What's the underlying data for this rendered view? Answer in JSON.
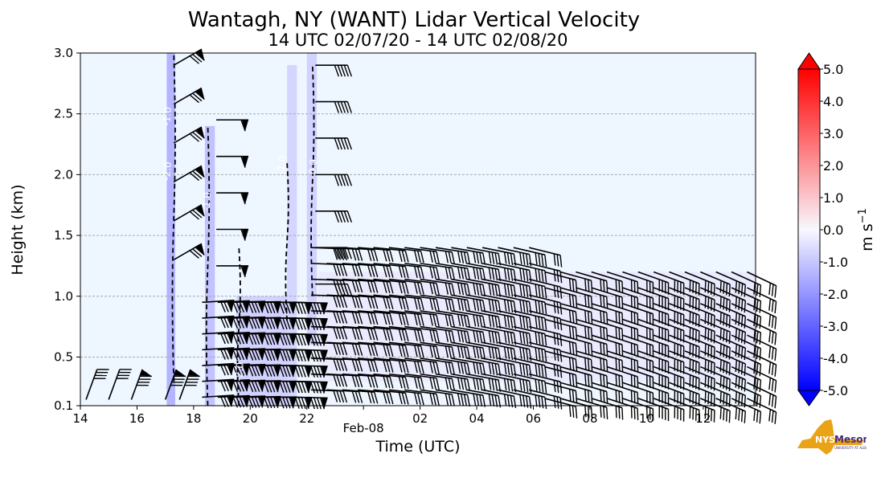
{
  "chart_data": {
    "type": "heatmap",
    "title": "Wantagh, NY (WANT) Lidar Vertical Velocity",
    "subtitle": "14 UTC 02/07/20 - 14 UTC 02/08/20",
    "xlabel": "Time (UTC)",
    "ylabel": "Height (km)",
    "xlim": [
      14,
      37.85
    ],
    "ylim": [
      0.1,
      3.0
    ],
    "x_ticks": [
      {
        "value": 14,
        "label": "14"
      },
      {
        "value": 16,
        "label": "16"
      },
      {
        "value": 18,
        "label": "18"
      },
      {
        "value": 20,
        "label": "20"
      },
      {
        "value": 22,
        "label": "22"
      },
      {
        "value": 24,
        "label": "Feb-08"
      },
      {
        "value": 26,
        "label": "02"
      },
      {
        "value": 28,
        "label": "04"
      },
      {
        "value": 30,
        "label": "06"
      },
      {
        "value": 32,
        "label": "08"
      },
      {
        "value": 34,
        "label": "10"
      },
      {
        "value": 36,
        "label": "12"
      }
    ],
    "y_ticks": [
      {
        "value": 0.1,
        "label": "0.1"
      },
      {
        "value": 0.5,
        "label": "0.5"
      },
      {
        "value": 1.0,
        "label": "1.0"
      },
      {
        "value": 1.5,
        "label": "1.5"
      },
      {
        "value": 2.0,
        "label": "2.0"
      },
      {
        "value": 2.5,
        "label": "2.5"
      },
      {
        "value": 3.0,
        "label": "3.0"
      }
    ],
    "grid": "horizontal dashed",
    "colorbar": {
      "label": "m s",
      "label_exp": "−1",
      "range": [
        -5.0,
        5.0
      ],
      "ticks": [
        {
          "value": 5,
          "label": "5.0"
        },
        {
          "value": 4,
          "label": "4.0"
        },
        {
          "value": 3,
          "label": "3.0"
        },
        {
          "value": 2,
          "label": "2.0"
        },
        {
          "value": 1,
          "label": "1.0"
        },
        {
          "value": 0,
          "label": "0.0"
        },
        {
          "value": -1,
          "label": "-1.0"
        },
        {
          "value": -2,
          "label": "-2.0"
        },
        {
          "value": -3,
          "label": "-3.0"
        },
        {
          "value": -4,
          "label": "-4.0"
        },
        {
          "value": -5,
          "label": "-5.0"
        }
      ],
      "colors": {
        "neg": "#0000ff",
        "zero": "#f8f8ff",
        "pos": "#ff0000"
      }
    },
    "background_color": "#eef6ff",
    "downdraft_columns": [
      {
        "x0": 17.05,
        "x1": 17.35,
        "y0": 0.1,
        "y1": 3.0,
        "w": -1.6
      },
      {
        "x0": 18.4,
        "x1": 18.75,
        "y0": 0.1,
        "y1": 2.4,
        "w": -1.3
      },
      {
        "x0": 21.3,
        "x1": 21.65,
        "y0": 0.1,
        "y1": 2.9,
        "w": -0.8
      },
      {
        "x0": 22.0,
        "x1": 22.35,
        "y0": 0.6,
        "y1": 3.0,
        "w": -0.9
      },
      {
        "x0": 19.5,
        "x1": 21.3,
        "y0": 0.1,
        "y1": 1.0,
        "w": -0.9
      },
      {
        "x0": 22.4,
        "x1": 37.85,
        "y0": 0.3,
        "y1": 1.2,
        "w": -0.3
      }
    ],
    "contour_labels": [
      "-1.0",
      "-2.0",
      "-1.0",
      "-2.0",
      "-1.0",
      "0.0"
    ]
  },
  "logo": {
    "text": "NYS",
    "name": "Mesonet",
    "sub": "UNIVERSITY AT ALBANY"
  }
}
